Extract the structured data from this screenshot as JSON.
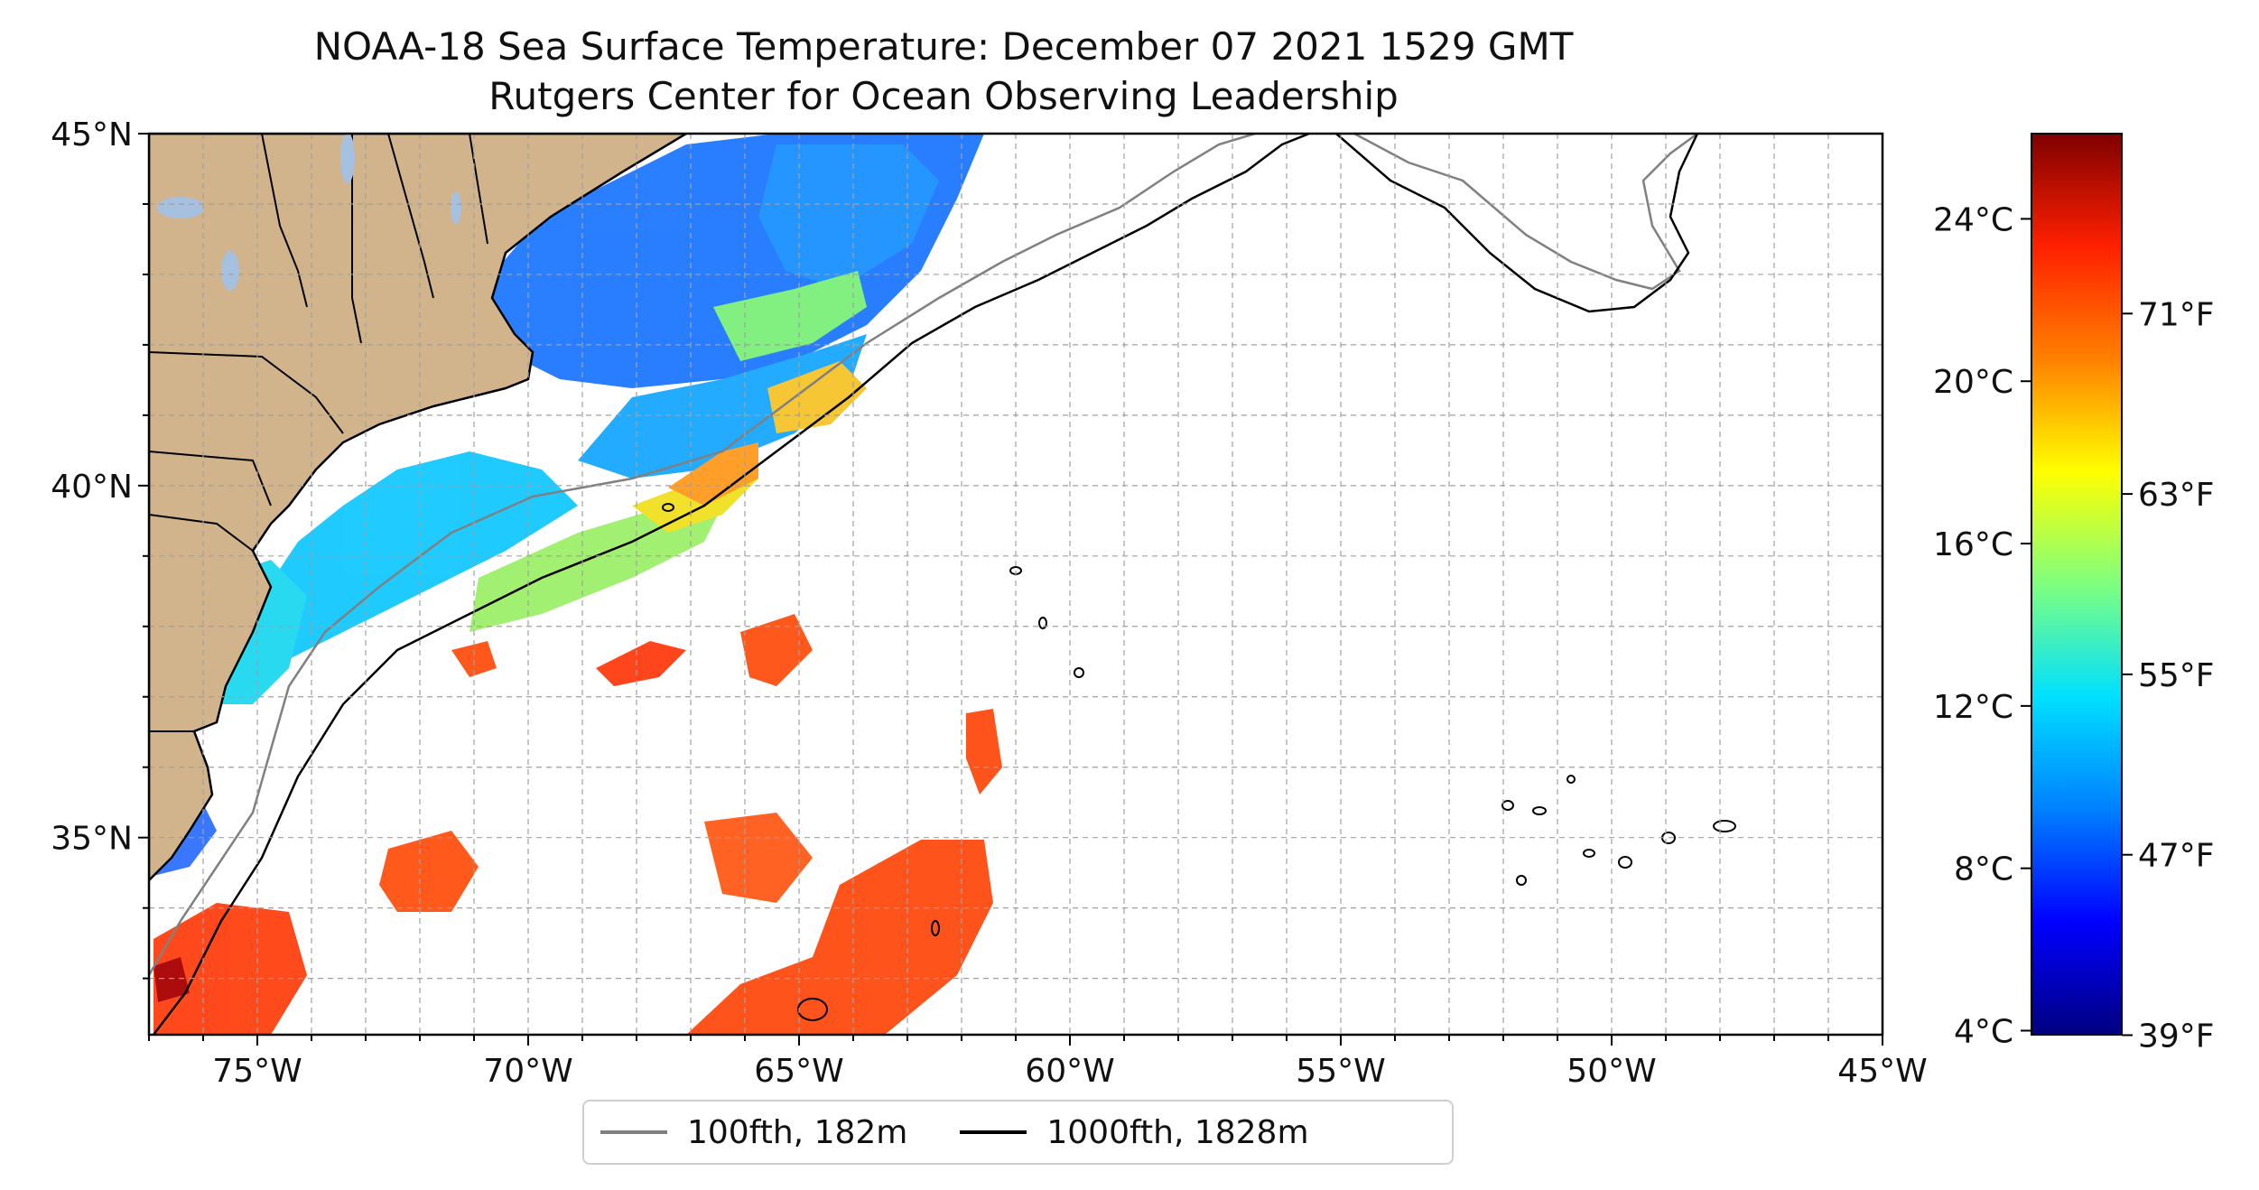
{
  "title": {
    "line1": "NOAA-18 Sea Surface Temperature: December 07 2021 1529 GMT",
    "line2": "Rutgers Center for Ocean Observing Leadership"
  },
  "map": {
    "extent": {
      "lon_min": -77,
      "lon_max": -45,
      "lat_min": 32.2,
      "lat_max": 45
    },
    "lat_ticks": [
      {
        "lat": 45,
        "label": "45°N"
      },
      {
        "lat": 40,
        "label": "40°N"
      },
      {
        "lat": 35,
        "label": "35°N"
      }
    ],
    "lon_ticks": [
      {
        "lon": -75,
        "label": "75°W"
      },
      {
        "lon": -70,
        "label": "70°W"
      },
      {
        "lon": -65,
        "label": "65°W"
      },
      {
        "lon": -60,
        "label": "60°W"
      },
      {
        "lon": -55,
        "label": "55°W"
      },
      {
        "lon": -50,
        "label": "50°W"
      },
      {
        "lon": -45,
        "label": "45°W"
      }
    ],
    "grid": true,
    "land_color": "#d2b48c",
    "lake_color": "#a6c0e0"
  },
  "legend": {
    "items": [
      {
        "label": "100fth, 182m",
        "color": "#808080"
      },
      {
        "label": "1000fth, 1828m",
        "color": "#000000"
      }
    ]
  },
  "colorbar": {
    "min_c": 3.9,
    "max_c": 26.1,
    "celsius_ticks": [
      {
        "value": 4,
        "label": "4°C"
      },
      {
        "value": 8,
        "label": "8°C"
      },
      {
        "value": 12,
        "label": "12°C"
      },
      {
        "value": 16,
        "label": "16°C"
      },
      {
        "value": 20,
        "label": "20°C"
      },
      {
        "value": 24,
        "label": "24°C"
      }
    ],
    "fahrenheit_ticks": [
      {
        "value": 39,
        "label": "39°F"
      },
      {
        "value": 47,
        "label": "47°F"
      },
      {
        "value": 55,
        "label": "55°F"
      },
      {
        "value": 63,
        "label": "63°F"
      },
      {
        "value": 71,
        "label": "71°F"
      }
    ],
    "colormap": [
      "#00007f",
      "#0000ff",
      "#0080ff",
      "#00e0ff",
      "#7fff7f",
      "#ffff00",
      "#ff8000",
      "#ff2000",
      "#7f0000"
    ]
  }
}
